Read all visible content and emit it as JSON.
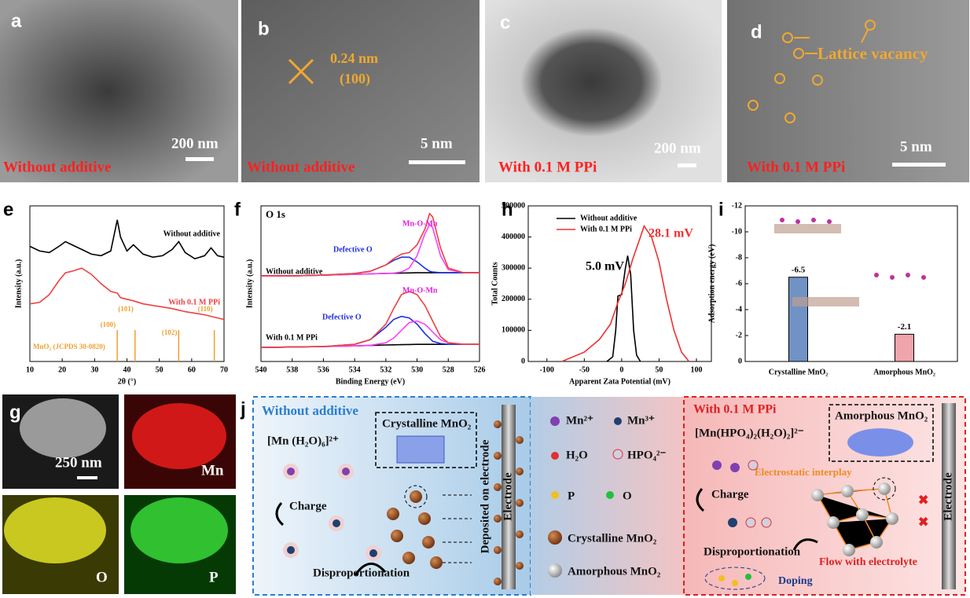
{
  "panels": [
    {
      "letter": "a",
      "caption": "Without additive",
      "scale_bar": "200 nm"
    },
    {
      "letter": "b",
      "caption": "Without additive",
      "scale_bar": "5 nm",
      "annotations": [
        "0.24 nm",
        "(100)"
      ]
    },
    {
      "letter": "c",
      "caption": "With 0.1 M PPi",
      "scale_bar": "200 nm"
    },
    {
      "letter": "d",
      "caption": "With 0.1 M PPi",
      "scale_bar": "5 nm",
      "annotations": [
        "Lattice vacancy"
      ]
    },
    {
      "letter": "g",
      "scale_bar": "250 nm",
      "maps": [
        "Mn",
        "O",
        "P"
      ]
    }
  ],
  "chart_data": [
    {
      "type": "line",
      "letter": "e",
      "xlabel": "2θ (°)",
      "ylabel": "Intensity (a.u.)",
      "xlim": [
        10,
        70
      ],
      "xticks": [
        10,
        20,
        30,
        40,
        50,
        60,
        70
      ],
      "ylim": [
        0,
        100
      ],
      "x": [
        10,
        13,
        16,
        19,
        21,
        23,
        26,
        29,
        32,
        35,
        37,
        38,
        40,
        42,
        45,
        48,
        51,
        54,
        56,
        58,
        61,
        64,
        66,
        68,
        70
      ],
      "series": [
        {
          "name": "Without additive",
          "color": "#000000",
          "values": [
            74,
            71,
            70,
            74,
            77,
            75,
            72,
            69,
            68,
            71,
            91,
            80,
            71,
            75,
            69,
            67,
            68,
            72,
            77,
            70,
            66,
            68,
            73,
            68,
            67
          ]
        },
        {
          "name": "With 0.1 M PPi",
          "color": "#f04040",
          "values": [
            37,
            38,
            43,
            52,
            57,
            58,
            60,
            56,
            50,
            45,
            44,
            41,
            40,
            39,
            37,
            36,
            35,
            34,
            33,
            32,
            31,
            30,
            29,
            28,
            27
          ]
        }
      ],
      "reference": {
        "label": "MnO₂ (JCPDS 30-0820)",
        "color": "#f0a030",
        "peaks": [
          {
            "x": 37,
            "label": "(100)"
          },
          {
            "x": 42.5,
            "label": "(101)"
          },
          {
            "x": 56,
            "label": "(102)"
          },
          {
            "x": 67,
            "label": "(110)"
          }
        ]
      }
    },
    {
      "type": "line",
      "letter": "f",
      "title": "O 1s",
      "xlabel": "Binding Energy (eV)",
      "ylabel": "Intensity (a.u.)",
      "xlim": [
        540,
        526
      ],
      "xticks": [
        540,
        538,
        536,
        534,
        532,
        530,
        528,
        526
      ],
      "ylim": [
        0,
        100
      ],
      "x": [
        540,
        538,
        536,
        534,
        533,
        532,
        531.5,
        531,
        530.5,
        530,
        529.5,
        529.2,
        529,
        528.5,
        528,
        527,
        526
      ],
      "series": [
        {
          "color": "#000000",
          "values": [
            55,
            55,
            55.5,
            56,
            56.3,
            56.6,
            56.7,
            56.8,
            56.9,
            57,
            57,
            57,
            57,
            57,
            57,
            57,
            57
          ]
        },
        {
          "color": "#2030e0",
          "values": [
            55,
            55,
            55.5,
            56.5,
            58,
            62,
            65,
            67,
            67,
            64,
            60,
            58,
            57.5,
            57,
            57,
            57,
            57
          ]
        },
        {
          "color": "#ff40ff",
          "values": [
            55,
            55,
            55.5,
            56,
            56.3,
            56.6,
            56.8,
            57.5,
            60,
            68,
            82,
            88,
            86,
            68,
            59,
            57,
            57
          ]
        },
        {
          "color": "#f04040",
          "values": [
            55,
            55,
            55.5,
            56.5,
            58,
            62,
            66,
            69,
            70,
            75,
            85,
            95,
            93,
            73,
            60,
            57,
            57
          ]
        },
        {
          "color": "#000000",
          "values": [
            9,
            9.3,
            9.6,
            10,
            10.3,
            10.6,
            10.7,
            10.8,
            10.9,
            11,
            11,
            11,
            11,
            11,
            11,
            11,
            11
          ]
        },
        {
          "color": "#2030e0",
          "values": [
            9,
            9.3,
            9.6,
            11,
            14,
            22,
            27,
            29,
            28,
            24,
            18,
            15,
            13,
            11.5,
            11,
            11,
            11
          ]
        },
        {
          "color": "#ff40ff",
          "values": [
            9,
            9.3,
            9.6,
            10,
            10.4,
            12,
            15,
            20,
            25,
            26,
            24,
            21,
            19,
            14,
            12,
            11,
            11
          ]
        },
        {
          "color": "#f04040",
          "values": [
            9,
            9.3,
            9.6,
            11,
            14,
            24,
            34,
            43,
            45,
            43,
            36,
            30,
            26,
            16,
            12,
            11,
            11
          ]
        }
      ],
      "annotations": [
        {
          "text": "Without additive",
          "color": "#000000"
        },
        {
          "text": "With 0.1 M PPi",
          "color": "#000000"
        },
        {
          "text": "Defective O",
          "color": "#2030e0"
        },
        {
          "text": "Mn-O-Mn",
          "color": "#e020e0"
        },
        {
          "text": "Defective O",
          "color": "#2030e0"
        },
        {
          "text": "Mn-O-Mn",
          "color": "#e020e0"
        }
      ]
    },
    {
      "type": "line",
      "letter": "h",
      "xlabel": "Apparent Zata Potential (mV)",
      "ylabel": "Total Counts",
      "xlim": [
        -125,
        120
      ],
      "xticks": [
        -100,
        -50,
        0,
        50,
        100
      ],
      "ylim": [
        0,
        500000
      ],
      "yticks": [
        0,
        100000,
        200000,
        300000,
        400000,
        500000
      ],
      "legend": "upper left",
      "series": [
        {
          "name": "Without additive",
          "color": "#000000",
          "x": [
            -20,
            -12,
            -8,
            -5,
            0,
            5,
            8,
            12,
            16,
            20,
            25
          ],
          "values": [
            0,
            15000,
            100000,
            210000,
            215000,
            300000,
            340000,
            280000,
            100000,
            20000,
            0
          ]
        },
        {
          "name": "With 0.1 M PPi",
          "color": "#f03030",
          "x": [
            -80,
            -50,
            -30,
            -15,
            -5,
            5,
            15,
            25,
            30,
            40,
            50,
            60,
            70,
            80,
            90
          ],
          "values": [
            0,
            30000,
            70000,
            120000,
            190000,
            250000,
            330000,
            400000,
            435000,
            400000,
            320000,
            200000,
            100000,
            30000,
            0
          ]
        }
      ],
      "annotations": [
        {
          "text": "5.0 mV",
          "color": "#000000"
        },
        {
          "text": "28.1 mV",
          "color": "#f03030"
        }
      ]
    },
    {
      "type": "bar",
      "letter": "i",
      "ylabel": "Adsorption energy (eV)",
      "categories": [
        "Crystalline MnO₂",
        "Amorphous MnO₂"
      ],
      "values": [
        -6.5,
        -2.1
      ],
      "colors": [
        "#7092c4",
        "#f0a4ac"
      ],
      "ylim": [
        0,
        -12
      ],
      "yticks": [
        -12,
        -10,
        -8,
        -6,
        -4,
        -2,
        0
      ]
    }
  ],
  "diagram": {
    "letter": "j",
    "left": {
      "title": "Without additive",
      "complex": "[Mn (H₂O)₆]²⁺",
      "product": "Crystalline MnO₂",
      "step1": "Charge",
      "step2": "Disproportionation",
      "deposit": "Deposited on electrode",
      "electrode": "Electrode"
    },
    "legend": [
      "Mn²⁺",
      "Mn³⁺",
      "H₂O",
      "HPO₄²⁻",
      "P",
      "O",
      "Crystalline MnO₂",
      "Amorphous MnO₂"
    ],
    "right": {
      "title": "With 0.1 M PPi",
      "complex": "[Mn(HPO₄)₂(H₂O)₂]²⁻",
      "product": "Amorphous MnO₂",
      "interplay": "Electrostatic interplay",
      "step1": "Charge",
      "step2": "Disproportionation",
      "doping": "Doping",
      "flow": "Flow with electrolyte",
      "electrode": "Electrode"
    }
  }
}
